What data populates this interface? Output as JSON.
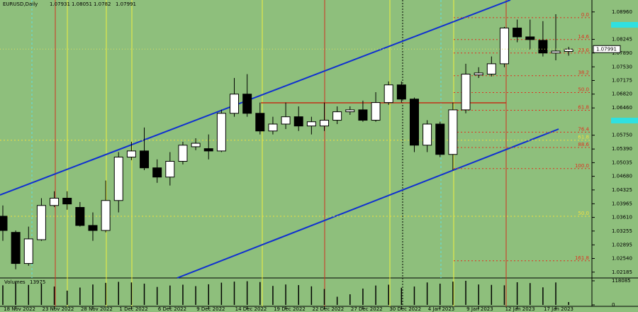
{
  "chart_data": {
    "type": "candlestick",
    "title": "EURUSD,Daily",
    "header_ohlc": [
      1.07931,
      1.08051,
      1.0782,
      1.07991
    ],
    "last_price": {
      "value": 1.07991,
      "label": "1.07991"
    },
    "categories": [
      null,
      "18 Nov 2022",
      null,
      null,
      "23 Nov 2022",
      null,
      null,
      "28 Nov 2022",
      null,
      null,
      "1 Dec 2022",
      null,
      null,
      "6 Dec 2022",
      null,
      null,
      "9 Dec 2022",
      null,
      null,
      "14 Dec 2022",
      null,
      null,
      "19 Dec 2022",
      null,
      null,
      "22 Dec 2022",
      null,
      null,
      "27 Dec 2022",
      null,
      null,
      "30 Dec 2022",
      null,
      null,
      "4 Jan 2023",
      null,
      null,
      "9 Jan 2023",
      null,
      null,
      "12 Jan 2023",
      null,
      null,
      "17 Jan 2023",
      null
    ],
    "open": [
      1.0364,
      1.0322,
      1.0241,
      1.0303,
      1.0392,
      1.0411,
      1.0387,
      1.034,
      1.0327,
      1.0405,
      1.0518,
      1.0534,
      1.049,
      1.0466,
      1.0507,
      1.0545,
      1.054,
      1.0534,
      1.0632,
      1.0682,
      1.0632,
      1.0586,
      1.0604,
      1.0623,
      1.0599,
      1.0599,
      1.0614,
      1.0636,
      1.0641,
      1.0614,
      1.066,
      1.0706,
      1.0669,
      1.0549,
      1.0604,
      1.0525,
      1.0641,
      1.0732,
      1.0734,
      1.0761,
      1.0854,
      1.0831,
      1.0822,
      1.0789,
      1.07931
    ],
    "high": [
      1.0392,
      1.0327,
      1.0337,
      1.0411,
      1.0429,
      1.0429,
      1.0401,
      1.0374,
      1.0457,
      1.0531,
      1.0558,
      1.0595,
      1.0512,
      1.0531,
      1.0558,
      1.0567,
      1.0577,
      1.0641,
      1.0724,
      1.0734,
      1.066,
      1.0623,
      1.066,
      1.065,
      1.0623,
      1.066,
      1.065,
      1.065,
      1.0665,
      1.0687,
      1.0715,
      1.0715,
      1.0673,
      1.0614,
      1.061,
      1.066,
      1.0761,
      1.0752,
      1.078,
      1.0857,
      1.0876,
      1.0876,
      1.0872,
      1.089,
      1.08051
    ],
    "low": [
      1.03,
      1.0226,
      1.0235,
      1.03,
      1.0388,
      1.0381,
      1.0337,
      1.03,
      1.0322,
      1.0374,
      1.051,
      1.0484,
      1.0451,
      1.0444,
      1.0499,
      1.0536,
      1.0512,
      1.0531,
      1.0623,
      1.0623,
      1.0577,
      1.0577,
      1.0591,
      1.0586,
      1.0577,
      1.0586,
      1.0604,
      1.0628,
      1.061,
      1.061,
      1.0654,
      1.066,
      1.0531,
      1.0531,
      1.0518,
      1.0484,
      1.0632,
      1.0724,
      1.0728,
      1.0752,
      1.0817,
      1.0798,
      1.078,
      1.077,
      1.0782
    ],
    "close": [
      1.0327,
      1.0241,
      1.0305,
      1.0392,
      1.0411,
      1.0396,
      1.034,
      1.0327,
      1.0405,
      1.0518,
      1.0534,
      1.049,
      1.0466,
      1.0507,
      1.0549,
      1.0554,
      1.0534,
      1.0632,
      1.0682,
      1.0632,
      1.0586,
      1.0604,
      1.0623,
      1.0599,
      1.061,
      1.0614,
      1.0636,
      1.0641,
      1.0614,
      1.066,
      1.0706,
      1.0669,
      1.0549,
      1.0604,
      1.0525,
      1.0641,
      1.0734,
      1.0737,
      1.0761,
      1.0854,
      1.0831,
      1.0824,
      1.0789,
      1.0794,
      1.07991
    ],
    "ylim": [
      1.0927,
      1.0207
    ],
    "yticks": [
      {
        "value": 1.0896,
        "label": "1.08960"
      },
      1.08245,
      {
        "value": 1.0789,
        "label": "1.07890"
      },
      {
        "value": 1.0753,
        "label": "1.07530"
      },
      1.07175,
      {
        "value": 1.0682,
        "label": "1.06820"
      },
      {
        "value": 1.0646,
        "label": "1.06460"
      },
      {
        "value": 1.0575,
        "label": "1.05750"
      },
      {
        "value": 1.0539,
        "label": "1.05390"
      },
      1.05035,
      {
        "value": 1.0468,
        "label": "1.04680"
      },
      1.04325,
      1.03965,
      {
        "value": 1.0361,
        "label": "1.03610"
      },
      1.03255,
      1.02895,
      {
        "value": 1.0254,
        "label": "1.02540"
      },
      1.02185
    ],
    "fib_levels": [
      {
        "price": 1.0881,
        "label": "0.0",
        "color": "#e03020"
      },
      {
        "price": 1.0824,
        "label": "14.6",
        "color": "#e03020"
      },
      {
        "price": 1.0789,
        "label": "23.6",
        "color": "#e03020"
      },
      {
        "price": 1.073,
        "label": "38.2",
        "color": "#e03020"
      },
      {
        "price": 1.0686,
        "label": "50.0",
        "color": "#e03020"
      },
      {
        "price": 1.064,
        "label": "61.8",
        "color": "#e03020"
      },
      {
        "price": 1.0583,
        "label": "76.4",
        "color": "#e03020"
      },
      {
        "price": 1.0562,
        "label": "61.8",
        "color": "#f0e040"
      },
      {
        "price": 1.0543,
        "label": "88.6",
        "color": "#e03020"
      },
      {
        "price": 1.0488,
        "label": "100.0",
        "color": "#e03020"
      },
      {
        "price": 1.0364,
        "label": "50.0",
        "color": "#f0e040"
      },
      {
        "price": 1.0248,
        "label": "161.8",
        "color": "#e03020"
      }
    ],
    "volume_title": "Volumes",
    "volume_last": 13975,
    "volumes": [
      96000,
      112000,
      98000,
      105000,
      90000,
      70000,
      85000,
      100000,
      108000,
      113000,
      110000,
      104000,
      88000,
      95000,
      99000,
      92000,
      101000,
      109000,
      114000,
      116000,
      112000,
      93000,
      100000,
      97000,
      91000,
      78000,
      40000,
      52000,
      80000,
      95000,
      99000,
      84000,
      90000,
      110000,
      104000,
      114000,
      118085,
      100000,
      98000,
      96000,
      111000,
      107000,
      86000,
      110000,
      13975
    ],
    "volume_ylim": [
      0,
      118085
    ],
    "volume_yticks": [
      118085,
      0
    ]
  }
}
